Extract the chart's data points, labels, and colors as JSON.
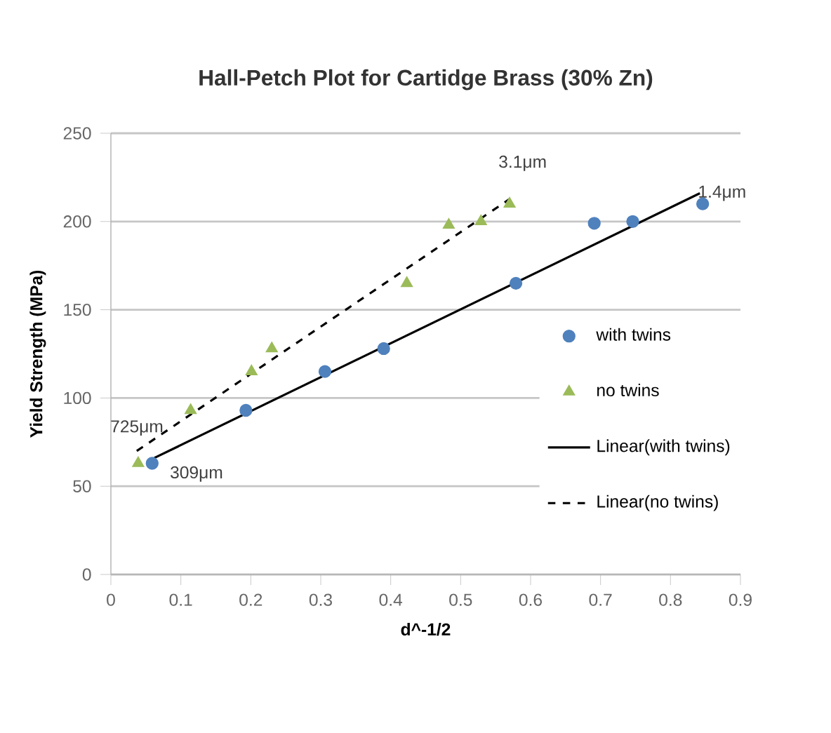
{
  "chart_data": {
    "type": "scatter",
    "title": "Hall-Petch Plot for Cartidge Brass (30% Zn)",
    "xlabel": "d^-1/2",
    "ylabel": "Yield Strength (MPa)",
    "xlim": [
      0,
      0.9
    ],
    "xticks": [
      0,
      0.1,
      0.2,
      0.3,
      0.4,
      0.5,
      0.6,
      0.7,
      0.8,
      0.9
    ],
    "ylim": [
      0,
      250
    ],
    "yticks": [
      0,
      50,
      100,
      150,
      200,
      250
    ],
    "grid": "y",
    "legend": "right",
    "series": [
      {
        "name": "with twins",
        "marker": "circle",
        "color": "#4f81bd",
        "x": [
          0.059,
          0.193,
          0.306,
          0.39,
          0.579,
          0.691,
          0.746,
          0.846
        ],
        "values": [
          63,
          93,
          115,
          128,
          165,
          199,
          200,
          210
        ]
      },
      {
        "name": "no twins",
        "marker": "triangle",
        "color": "#9bbb59",
        "x": [
          0.039,
          0.114,
          0.201,
          0.23,
          0.423,
          0.483,
          0.529,
          0.57
        ],
        "values": [
          63,
          93,
          115,
          128,
          165,
          198,
          200,
          210
        ]
      },
      {
        "name": "Linear(with twins)",
        "type": "line",
        "line_style": "solid",
        "color": "#000000",
        "x": [
          0.062,
          0.842
        ],
        "values": [
          66,
          216
        ]
      },
      {
        "name": "Linear(no twins)",
        "type": "line",
        "line_style": "dashed",
        "color": "#000000",
        "x": [
          0.037,
          0.571
        ],
        "values": [
          70,
          213
        ]
      }
    ],
    "annotations": [
      {
        "text": "725μm",
        "x": 0.037,
        "y": 70
      },
      {
        "text": "309μm",
        "x": 0.059,
        "y": 63
      },
      {
        "text": "3.1μm",
        "x": 0.571,
        "y": 213
      },
      {
        "text": "1.4μm",
        "x": 0.842,
        "y": 216
      }
    ]
  }
}
